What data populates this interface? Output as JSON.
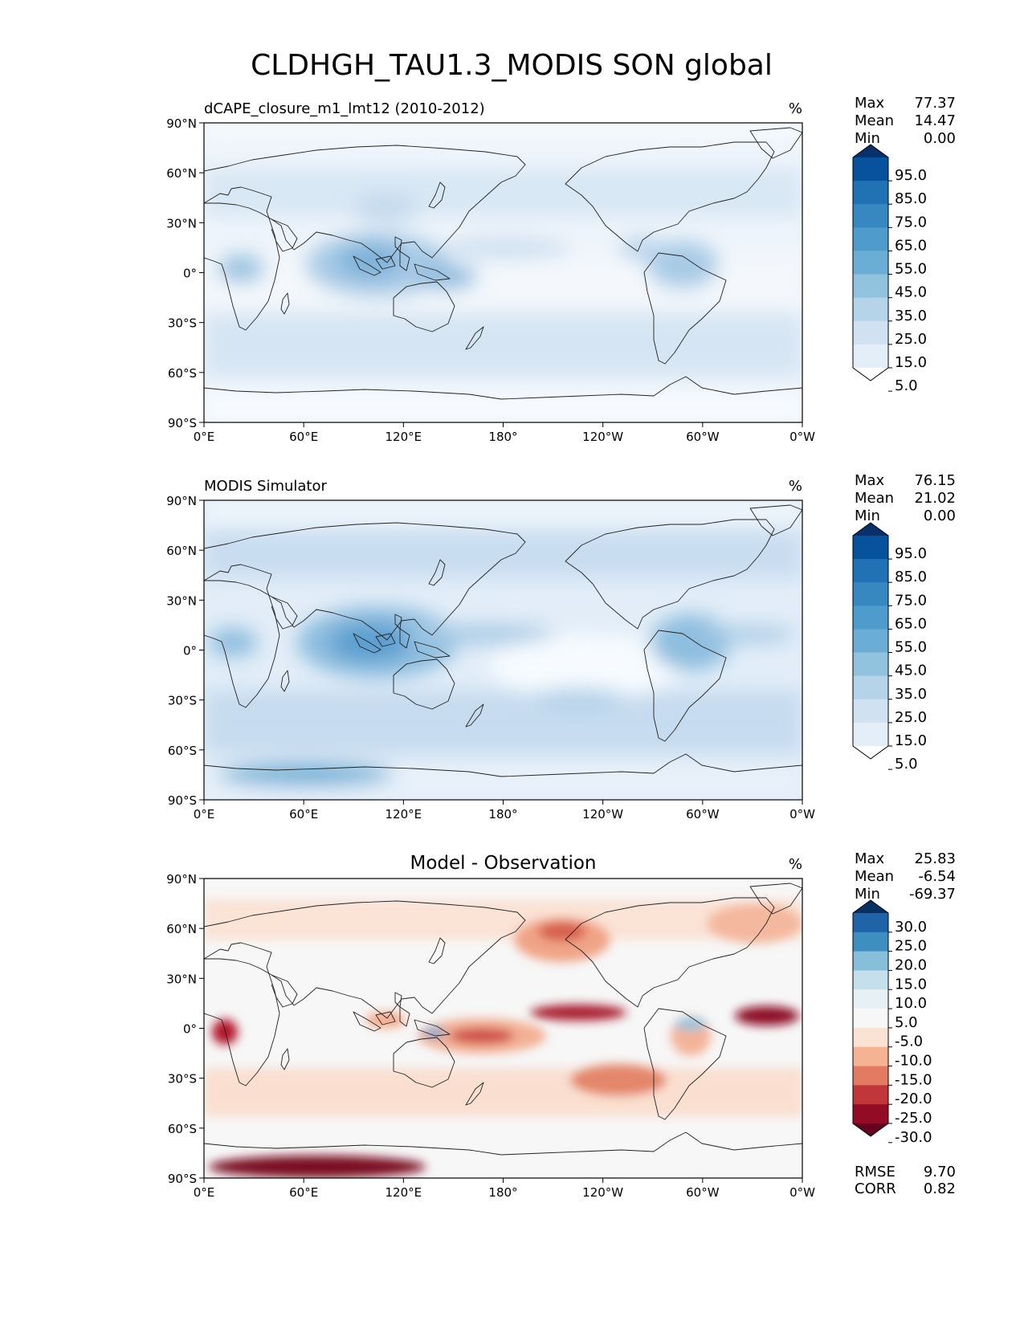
{
  "title": "CLDHGH_TAU1.3_MODIS SON global",
  "lat_labels": [
    "90°N",
    "60°N",
    "30°N",
    "0°",
    "30°S",
    "60°S",
    "90°S"
  ],
  "lon_labels": [
    "0°E",
    "60°E",
    "120°E",
    "180°",
    "120°W",
    "60°W",
    "0°W"
  ],
  "stat_labels": {
    "max": "Max",
    "mean": "Mean",
    "min": "Min",
    "rmse": "RMSE",
    "corr": "CORR"
  },
  "panels": [
    {
      "title": "dCAPE_closure_m1_lmt12 (2010-2012)",
      "units": "%",
      "stats": {
        "max": "77.37",
        "mean": "14.47",
        "min": "0.00"
      },
      "colorbar_labels": [
        "95.0",
        "85.0",
        "75.0",
        "65.0",
        "55.0",
        "45.0",
        "35.0",
        "25.0",
        "15.0",
        "5.0"
      ],
      "colorbar_colors": [
        "#08306b",
        "#08519c",
        "#2171b5",
        "#3787c0",
        "#4f9bcb",
        "#6aaed6",
        "#92c3de",
        "#b6d4e9",
        "#d0e1f2",
        "#e3eef9",
        "#ffffff"
      ]
    },
    {
      "title": "MODIS Simulator",
      "units": "%",
      "stats": {
        "max": "76.15",
        "mean": "21.02",
        "min": "0.00"
      },
      "colorbar_labels": [
        "95.0",
        "85.0",
        "75.0",
        "65.0",
        "55.0",
        "45.0",
        "35.0",
        "25.0",
        "15.0",
        "5.0"
      ],
      "colorbar_colors": [
        "#08306b",
        "#08519c",
        "#2171b5",
        "#3787c0",
        "#4f9bcb",
        "#6aaed6",
        "#92c3de",
        "#b6d4e9",
        "#d0e1f2",
        "#e3eef9",
        "#ffffff"
      ]
    },
    {
      "title": "Model - Observation",
      "units": "%",
      "stats": {
        "max": "25.83",
        "mean": "-6.54",
        "min": "-69.37",
        "rmse": "9.70",
        "corr": "0.82"
      },
      "colorbar_labels": [
        "30.0",
        "25.0",
        "20.0",
        "15.0",
        "10.0",
        "5.0",
        "-5.0",
        "-10.0",
        "-15.0",
        "-20.0",
        "-25.0",
        "-30.0"
      ],
      "colorbar_colors": [
        "#053061",
        "#1f63a8",
        "#3f8ec0",
        "#87beda",
        "#c5dfec",
        "#e7f0f4",
        "#f7f7f7",
        "#fbe3d4",
        "#f6b394",
        "#e27b62",
        "#c13639",
        "#930c25",
        "#67001f"
      ]
    }
  ]
}
